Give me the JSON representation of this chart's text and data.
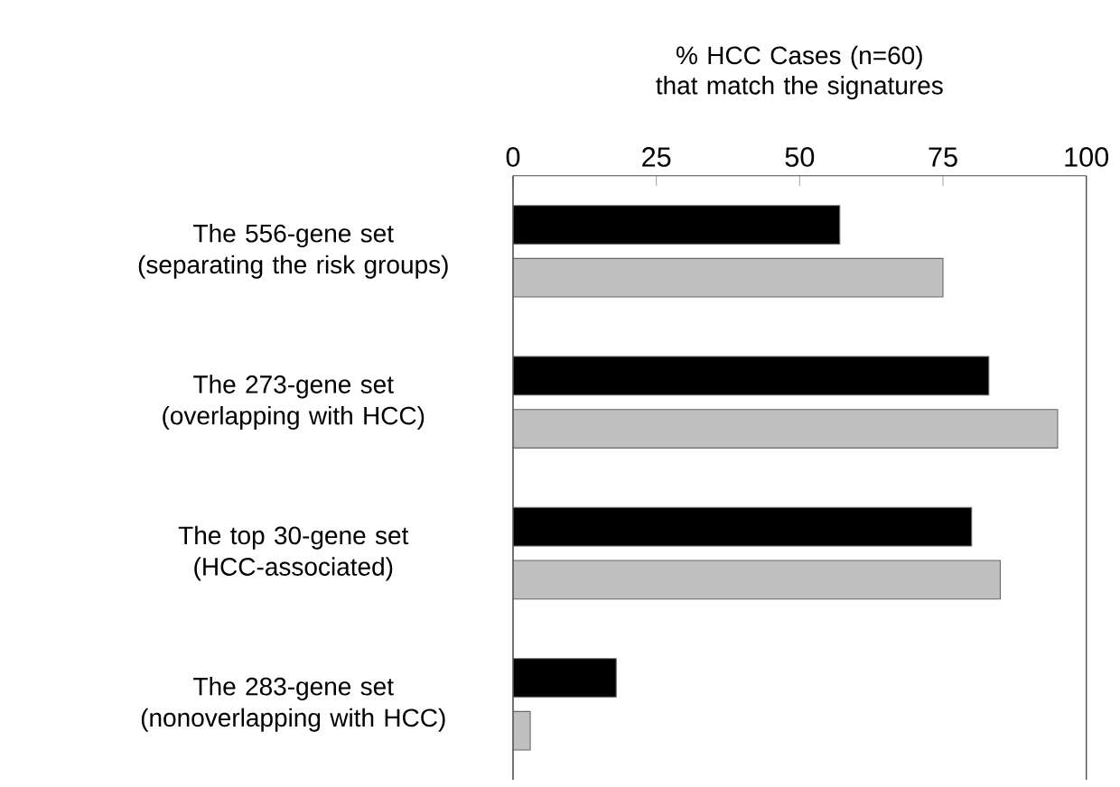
{
  "chart_data": {
    "type": "bar",
    "orientation": "horizontal",
    "title": "% HCC Cases (n=60) that match the signatures",
    "categories": [
      "The 556-gene set (separating the risk groups)",
      "The 273-gene set (overlapping with HCC)",
      "The top 30-gene set (HCC-associated)",
      "The 283-gene set (nonoverlapping with HCC)"
    ],
    "series": [
      {
        "color": "#000000",
        "values": [
          57,
          83,
          80,
          18
        ]
      },
      {
        "color": "#c0c0c0",
        "values": [
          75,
          95,
          85,
          3
        ]
      }
    ],
    "xlim": [
      0,
      100
    ],
    "xticks": [
      0,
      25,
      50,
      75,
      100
    ],
    "grid": false
  }
}
